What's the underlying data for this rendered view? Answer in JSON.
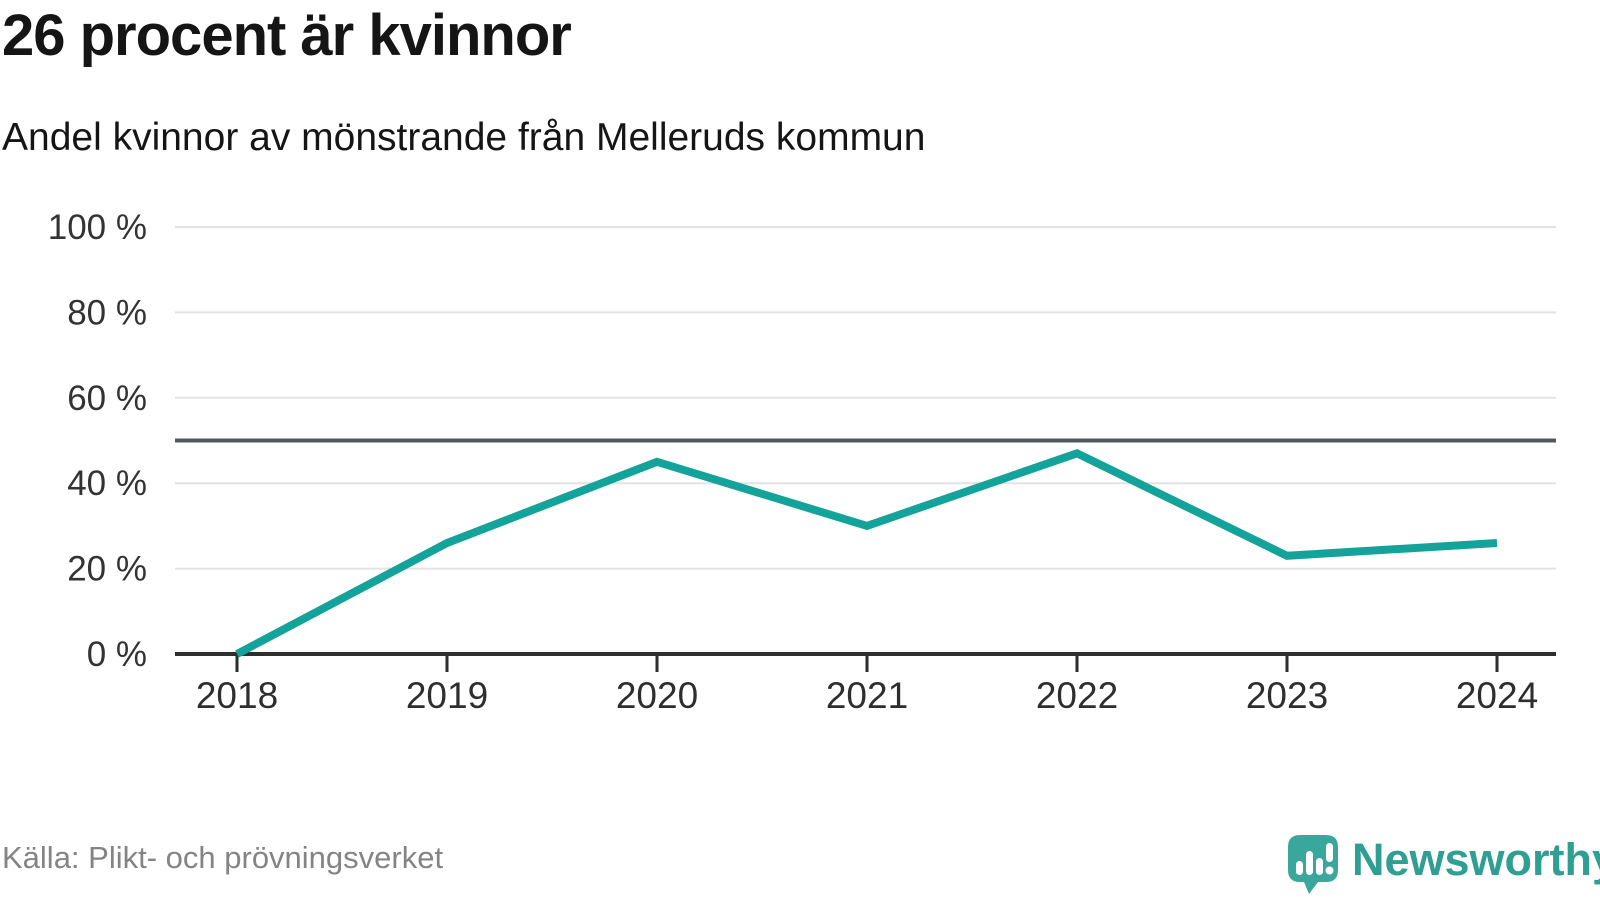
{
  "header": {
    "title": "26 procent är kvinnor",
    "subtitle": "Andel kvinnor av mönstrande från Melleruds kommun"
  },
  "footer": {
    "source": "Källa: Plikt- och prövningsverket",
    "brand": "Newsworthy"
  },
  "colors": {
    "line": "#14a39a",
    "reference_line": "#55585b",
    "grid": "#e3e3e3",
    "axis": "#2e2e2e",
    "tick_label": "#333333",
    "title": "#151515",
    "source": "#848484",
    "logo": "#3aa79c",
    "brand_text": "#2f9f93"
  },
  "chart_data": {
    "type": "line",
    "title": "26 procent är kvinnor",
    "subtitle": "Andel kvinnor av mönstrande från Melleruds kommun",
    "categories": [
      "2018",
      "2019",
      "2020",
      "2021",
      "2022",
      "2023",
      "2024"
    ],
    "series": [
      {
        "name": "Andel kvinnor av mönstrande",
        "values": [
          0,
          26,
          45,
          30,
          47,
          23,
          26
        ]
      }
    ],
    "unit": "%",
    "ylim": [
      0,
      100
    ],
    "yticks": [
      0,
      20,
      40,
      60,
      80,
      100
    ],
    "ytick_labels": [
      "0 %",
      "20 %",
      "40 %",
      "60 %",
      "80 %",
      "100 %"
    ],
    "reference_line": 50,
    "grid": true,
    "legend": false,
    "source": "Källa: Plikt- och prövningsverket"
  }
}
